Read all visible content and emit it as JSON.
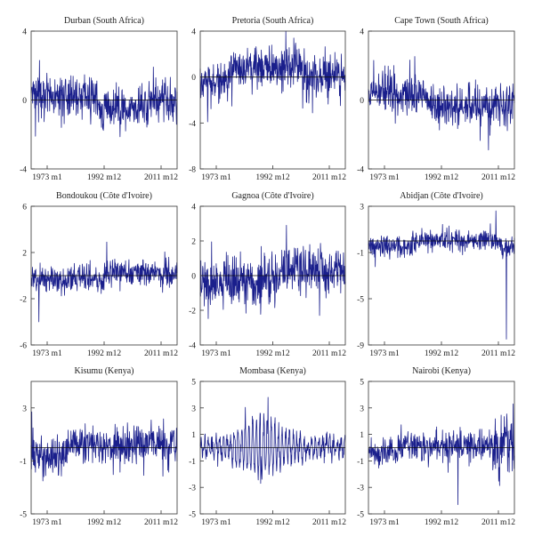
{
  "colors": {
    "series": "#1a1f8c",
    "frame": "#333333",
    "zero_line": "#111111"
  },
  "chart_data": [
    {
      "type": "line",
      "title": "Durban (South Africa)",
      "ylim": [
        -4,
        4
      ],
      "yticks": [
        -4,
        0,
        4
      ],
      "xticks": [
        "1973 m1",
        "1992 m12",
        "2011 m12"
      ],
      "grid": false,
      "x_range": [
        "1973 m1",
        "2012 m6"
      ],
      "profile": "durban",
      "notable_points": [
        {
          "x": "1974 m3",
          "y": -2.1
        },
        {
          "x": "1975 m4",
          "y": 2.3
        }
      ]
    },
    {
      "type": "line",
      "title": "Pretoria (South Africa)",
      "ylim": [
        -8,
        4
      ],
      "yticks": [
        -8,
        -4,
        0,
        4
      ],
      "xticks": [
        "1973 m1",
        "1992 m12",
        "2011 m12"
      ],
      "grid": false,
      "x_range": [
        "1973 m1",
        "2012 m6"
      ],
      "profile": "pretoria",
      "notable_points": [
        {
          "x": "1998 m6",
          "y": 3.4
        },
        {
          "x": "1975 m1",
          "y": -3.9
        }
      ]
    },
    {
      "type": "line",
      "title": "Cape Town (South Africa)",
      "ylim": [
        -4,
        4
      ],
      "yticks": [
        -4,
        0,
        4
      ],
      "xticks": [
        "1973 m1",
        "1992 m12",
        "2011 m12"
      ],
      "grid": false,
      "x_range": [
        "1973 m1",
        "2012 m6"
      ],
      "profile": "capetown",
      "notable_points": [
        {
          "x": "2005 m6",
          "y": -2.9
        },
        {
          "x": "1974 m6",
          "y": 2.3
        }
      ]
    },
    {
      "type": "line",
      "title": "Bondoukou (Côte d'Ivoire)",
      "ylim": [
        -6,
        6
      ],
      "yticks": [
        -6,
        -2,
        2,
        6
      ],
      "xticks": [
        "1973 m1",
        "1992 m12",
        "2011 m12"
      ],
      "grid": false,
      "x_range": [
        "1973 m1",
        "2012 m6"
      ],
      "profile": "bondoukou",
      "notable_points": [
        {
          "x": "1975 m2",
          "y": -4.0
        },
        {
          "x": "1993 m6",
          "y": 2.9
        }
      ]
    },
    {
      "type": "line",
      "title": "Gagnoa (Côte d'Ivoire)",
      "ylim": [
        -4,
        4
      ],
      "yticks": [
        -4,
        -2,
        0,
        2,
        4
      ],
      "xticks": [
        "1973 m1",
        "1992 m12",
        "2011 m12"
      ],
      "grid": false,
      "x_range": [
        "1973 m1",
        "2012 m6"
      ],
      "profile": "gagnoa",
      "notable_points": [
        {
          "x": "1996 m6",
          "y": 2.9
        },
        {
          "x": "2005 m6",
          "y": -2.3
        }
      ]
    },
    {
      "type": "line",
      "title": "Abidjan (Côte d'Ivoire)",
      "ylim": [
        -9,
        3
      ],
      "yticks": [
        -9,
        -5,
        -1,
        3
      ],
      "xticks": [
        "1973 m1",
        "1992 m12",
        "2011 m12"
      ],
      "grid": false,
      "x_range": [
        "1973 m1",
        "2012 m6"
      ],
      "profile": "abidjan",
      "notable_points": [
        {
          "x": "2010 m4",
          "y": -8.5
        },
        {
          "x": "2007 m6",
          "y": 2.6
        }
      ]
    },
    {
      "type": "line",
      "title": "Kisumu (Kenya)",
      "ylim": [
        -5,
        5
      ],
      "yticks": [
        -5,
        -1,
        3
      ],
      "xticks": [
        "1973 m1",
        "1992 m12",
        "2011 m12"
      ],
      "grid": false,
      "x_range": [
        "1973 m1",
        "2012 m6"
      ],
      "profile": "kisumu",
      "notable_points": [
        {
          "x": "1973 m3",
          "y": 2.7
        },
        {
          "x": "1976 m6",
          "y": -2.2
        }
      ]
    },
    {
      "type": "line",
      "title": "Mombasa (Kenya)",
      "ylim": [
        -5,
        5
      ],
      "yticks": [
        -5,
        -3,
        -1,
        1,
        3,
        5
      ],
      "xticks": [
        "1973 m1",
        "1992 m12",
        "2011 m12"
      ],
      "grid": false,
      "x_range": [
        "1973 m1",
        "2012 m6"
      ],
      "profile": "mombasa",
      "notable_points": [
        {
          "x": "1991 m6",
          "y": 3.8
        },
        {
          "x": "1989 m6",
          "y": -2.7
        }
      ]
    },
    {
      "type": "line",
      "title": "Nairobi (Kenya)",
      "ylim": [
        -5,
        5
      ],
      "yticks": [
        -5,
        -3,
        -1,
        1,
        3,
        5
      ],
      "xticks": [
        "1973 m1",
        "1992 m12",
        "2011 m12"
      ],
      "grid": false,
      "x_range": [
        "1973 m1",
        "2012 m6"
      ],
      "profile": "nairobi",
      "notable_points": [
        {
          "x": "1997 m3",
          "y": -4.3
        },
        {
          "x": "2012 m2",
          "y": 3.3
        }
      ]
    }
  ]
}
